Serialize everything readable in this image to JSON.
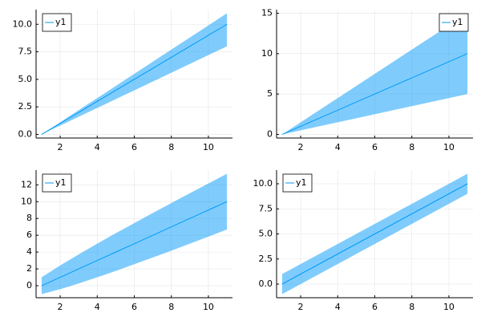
{
  "chart_data": [
    {
      "type": "line",
      "legend": "top-left",
      "grid": true,
      "x": [
        1,
        2,
        3,
        4,
        5,
        6,
        7,
        8,
        9,
        10,
        11
      ],
      "series": [
        {
          "name": "y1",
          "color": "#009af9",
          "values": [
            0,
            1,
            2,
            3,
            4,
            5,
            6,
            7,
            8,
            9,
            10
          ],
          "lower": [
            0,
            0.8,
            1.6,
            2.4,
            3.2,
            4,
            4.8,
            5.6,
            6.4,
            7.2,
            8
          ],
          "upper": [
            0,
            1.1,
            2.2,
            3.3,
            4.4,
            5.5,
            6.6,
            7.7,
            8.8,
            9.9,
            11
          ]
        }
      ],
      "xlim": [
        0.7,
        11.3
      ],
      "ylim": [
        -0.33,
        11.33
      ],
      "xticks": [
        2,
        4,
        6,
        8,
        10
      ],
      "yticks": [
        {
          "value": 0,
          "label": "0.0"
        },
        {
          "value": 2.5,
          "label": "2.5"
        },
        {
          "value": 5,
          "label": "5.0"
        },
        {
          "value": 7.5,
          "label": "7.5"
        },
        {
          "value": 10,
          "label": "10.0"
        }
      ]
    },
    {
      "type": "line",
      "legend": "top-right",
      "grid": true,
      "x": [
        1,
        2,
        3,
        4,
        5,
        6,
        7,
        8,
        9,
        10,
        11
      ],
      "series": [
        {
          "name": "y1",
          "color": "#009af9",
          "values": [
            0,
            1,
            2,
            3,
            4,
            5,
            6,
            7,
            8,
            9,
            10
          ],
          "lower": [
            0,
            0.5,
            1,
            1.5,
            2,
            2.5,
            3,
            3.5,
            4,
            4.5,
            5
          ],
          "upper": [
            0,
            1.5,
            3,
            4.5,
            6,
            7.5,
            9,
            10.5,
            12,
            13.5,
            15
          ]
        }
      ],
      "xlim": [
        0.7,
        11.3
      ],
      "ylim": [
        -0.45,
        15.45
      ],
      "xticks": [
        2,
        4,
        6,
        8,
        10
      ],
      "yticks": [
        0,
        5,
        10,
        15
      ]
    },
    {
      "type": "line",
      "legend": "top-left",
      "grid": true,
      "x": [
        1,
        2,
        3,
        4,
        5,
        6,
        7,
        8,
        9,
        10,
        11
      ],
      "series": [
        {
          "name": "y1",
          "color": "#009af9",
          "values": [
            0,
            1,
            2,
            3,
            4,
            5,
            6,
            7,
            8,
            9,
            10
          ],
          "lower": [
            -1,
            -0.41,
            0.27,
            1,
            1.76,
            2.55,
            3.35,
            4.17,
            5,
            5.84,
            6.68
          ],
          "upper": [
            1,
            2.41,
            3.73,
            5,
            6.24,
            7.45,
            8.65,
            9.83,
            11,
            12.16,
            13.32
          ]
        }
      ],
      "xlim": [
        0.7,
        11.3
      ],
      "ylim": [
        -1.43,
        13.75
      ],
      "xticks": [
        2,
        4,
        6,
        8,
        10
      ],
      "yticks": [
        0,
        2,
        4,
        6,
        8,
        10,
        12
      ]
    },
    {
      "type": "line",
      "legend": "top-left",
      "grid": true,
      "x": [
        1,
        2,
        3,
        4,
        5,
        6,
        7,
        8,
        9,
        10,
        11
      ],
      "series": [
        {
          "name": "y1",
          "color": "#009af9",
          "values": [
            0,
            1,
            2,
            3,
            4,
            5,
            6,
            7,
            8,
            9,
            10
          ],
          "lower": [
            -1,
            0,
            1,
            2,
            3,
            4,
            5,
            6,
            7,
            8,
            9
          ],
          "upper": [
            1,
            2,
            3,
            4,
            5,
            6,
            7,
            8,
            9,
            10,
            11
          ]
        }
      ],
      "xlim": [
        0.7,
        11.3
      ],
      "ylim": [
        -1.36,
        11.36
      ],
      "xticks": [
        2,
        4,
        6,
        8,
        10
      ],
      "yticks": [
        {
          "value": 0,
          "label": "0.0"
        },
        {
          "value": 2.5,
          "label": "2.5"
        },
        {
          "value": 5,
          "label": "5.0"
        },
        {
          "value": 7.5,
          "label": "7.5"
        },
        {
          "value": 10,
          "label": "10.0"
        }
      ]
    }
  ]
}
